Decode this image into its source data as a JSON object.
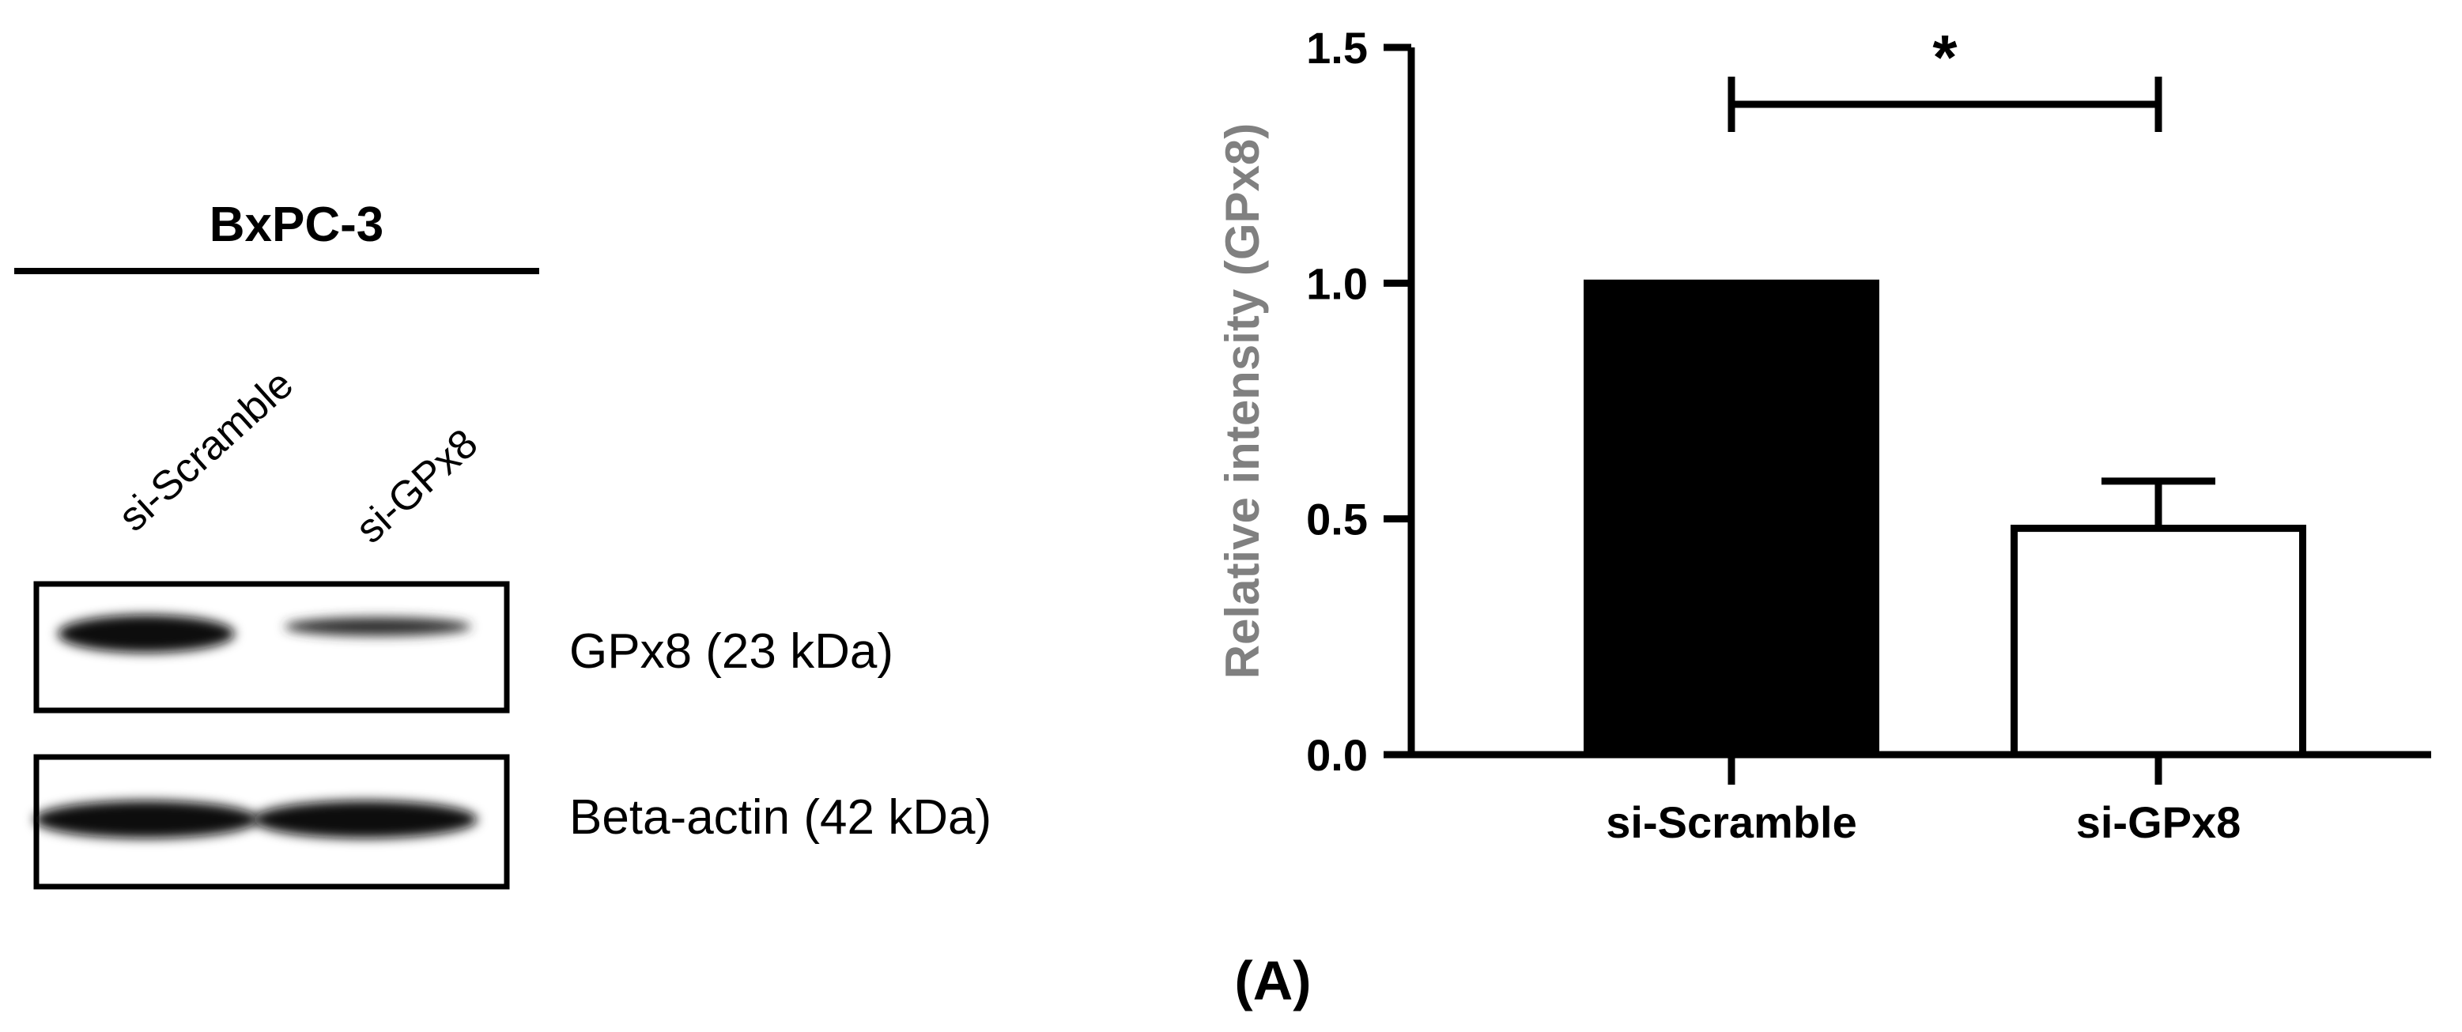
{
  "western_blot": {
    "cell_line": "BxPC-3",
    "lanes": [
      "si-Scramble",
      "si-GPx8"
    ],
    "bands": [
      {
        "label": "GPx8 (23 kDa)"
      },
      {
        "label": "Beta-actin (42 kDa)"
      }
    ]
  },
  "panel_label": "(A)",
  "chart_data": {
    "type": "bar",
    "categories": [
      "si-Scramble",
      "si-GPx8"
    ],
    "values": [
      1.0,
      0.48
    ],
    "errors": [
      0,
      0.1
    ],
    "bar_fill": [
      "#000000",
      "#ffffff"
    ],
    "bar_stroke": "#000000",
    "ylabel": "Relative intensity (GPx8)",
    "ylabel_color": "#808080",
    "xlabel": "",
    "ylim": [
      0,
      1.5
    ],
    "yticks": [
      0.0,
      0.5,
      1.0,
      1.5
    ],
    "ytick_labels": [
      "0.0",
      "0.5",
      "1.0",
      "1.5"
    ],
    "grid": false,
    "significance": {
      "between": [
        0,
        1
      ],
      "marker": "*"
    }
  }
}
